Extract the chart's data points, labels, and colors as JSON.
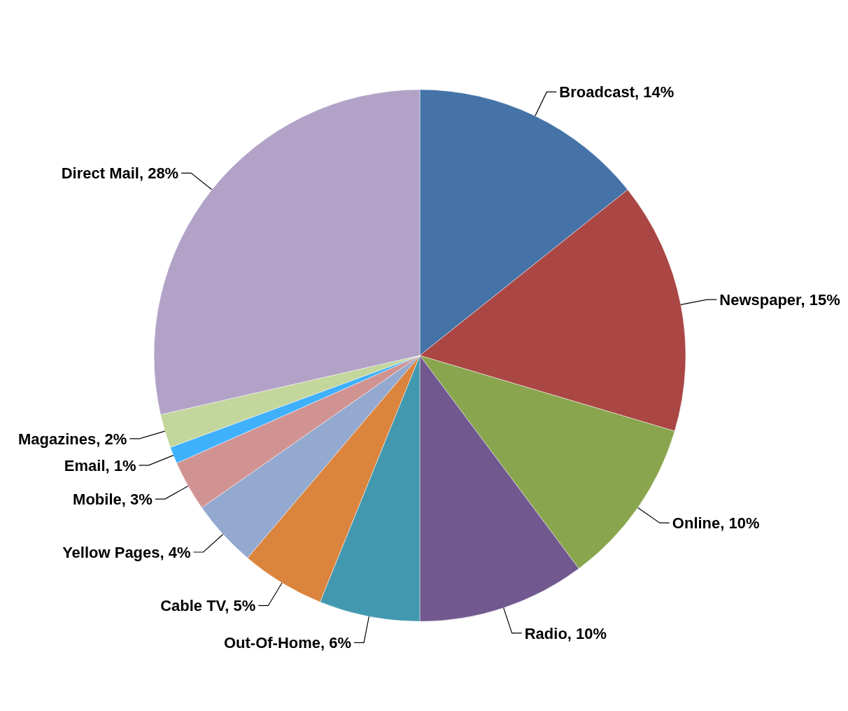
{
  "chart_data": {
    "type": "pie",
    "categories": [
      "Broadcast",
      "Newspaper",
      "Online",
      "Radio",
      "Out-Of-Home",
      "Cable TV",
      "Yellow Pages",
      "Mobile",
      "Email",
      "Magazines",
      "Direct Mail"
    ],
    "values": [
      14,
      15,
      10,
      10,
      6,
      5,
      4,
      3,
      1,
      2,
      28
    ],
    "value_labels": [
      "14%",
      "15%",
      "10%",
      "10%",
      "6%",
      "5%",
      "4%",
      "3%",
      "1%",
      "2%",
      "28%"
    ],
    "colors": [
      "#4573a7",
      "#aa4644",
      "#89a54e",
      "#71588f",
      "#4198af",
      "#db843d",
      "#93a9cf",
      "#d19392",
      "#3fb0fc",
      "#c3d69b",
      "#b2a2c7"
    ]
  }
}
